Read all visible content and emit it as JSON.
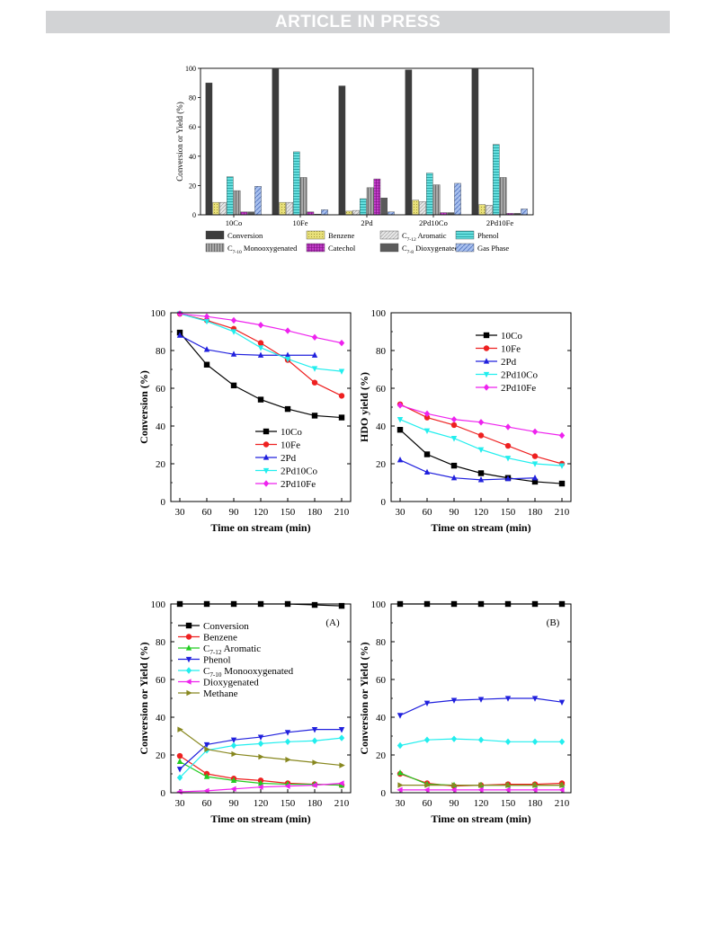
{
  "header": {
    "banner": "ARTICLE IN PRESS"
  },
  "colors": {
    "conversion": "#3c3c3c",
    "benzene": "#e8e07a",
    "aromatic": "#e6e6e6",
    "phenol": "#66dede",
    "monooxy": "#a8a8a8",
    "catechol": "#c23ec8",
    "dioxygenated": "#5a5a5a",
    "gasphase": "#a8c0ee",
    "s10Co": "#000000",
    "s10Fe": "#ee2020",
    "s2Pd": "#2020dd",
    "s2Pd10Co": "#22eeee",
    "s2Pd10Fe": "#ee22ee",
    "benzeneLine": "#ee2020",
    "aromaticLine": "#22cc22",
    "phenolLine": "#2020dd",
    "monooxyLine": "#22eeee",
    "dioxyLine": "#ee22ee",
    "methaneLine": "#888820"
  },
  "chart_data": [
    {
      "type": "bar",
      "ylabel": "Conversion or Yield (%)",
      "ylim": [
        0,
        100
      ],
      "yticks": [
        "0",
        "20",
        "40",
        "60",
        "80",
        "100"
      ],
      "categories": [
        "10Co",
        "10Fe",
        "2Pd",
        "2Pd10Co",
        "2Pd10Fe"
      ],
      "legend_position": "bottom",
      "series": [
        {
          "name": "Conversion",
          "values": [
            90,
            99.5,
            88,
            99,
            99.5
          ]
        },
        {
          "name": "Benzene",
          "values": [
            8.5,
            8.5,
            2.5,
            10,
            7
          ]
        },
        {
          "name": "C7-12 Aromatic",
          "label_main": "C",
          "label_sub": "7-12",
          "label_rest": " Aromatic",
          "values": [
            8.5,
            8.5,
            3,
            9,
            6.5
          ]
        },
        {
          "name": "Phenol",
          "values": [
            26,
            43,
            11,
            28.5,
            48
          ]
        },
        {
          "name": "C7-10 Monooxygenated",
          "label_main": "C",
          "label_sub": "7-10",
          "label_rest": " Monooxygenated",
          "values": [
            16.5,
            25.5,
            18.5,
            20.5,
            25.5
          ]
        },
        {
          "name": "Catechol",
          "values": [
            2,
            2,
            24.5,
            1.5,
            1
          ]
        },
        {
          "name": "C7-8 Dioxygenated",
          "label_main": "C",
          "label_sub": "7-8",
          "label_rest": " Dioxygenated",
          "values": [
            2,
            0.5,
            11.5,
            1.5,
            1
          ]
        },
        {
          "name": "Gas Phase",
          "values": [
            19.5,
            3.5,
            2,
            21.5,
            4
          ]
        }
      ]
    },
    {
      "type": "line",
      "xlabel": "Time on stream (min)",
      "ylabel": "Conversion (%)",
      "x": [
        30,
        60,
        90,
        120,
        150,
        180,
        210
      ],
      "xlim": [
        20,
        220
      ],
      "ylim": [
        0,
        100
      ],
      "xticks": [
        "30",
        "60",
        "90",
        "120",
        "150",
        "180",
        "210"
      ],
      "yticks": [
        "0",
        "20",
        "40",
        "60",
        "80",
        "100"
      ],
      "legend_position": "bottom-center",
      "series": [
        {
          "name": "10Co",
          "values": [
            89.5,
            72.5,
            61.5,
            54,
            49,
            45.5,
            44.5
          ]
        },
        {
          "name": "10Fe",
          "values": [
            99.5,
            96,
            91.5,
            84,
            75,
            63,
            56
          ]
        },
        {
          "name": "2Pd",
          "values": [
            88,
            80.5,
            78,
            77.5,
            77.5,
            77.5,
            null
          ]
        },
        {
          "name": "2Pd10Co",
          "values": [
            99.5,
            95.5,
            90,
            81.5,
            75.5,
            70.5,
            69
          ]
        },
        {
          "name": "2Pd10Fe",
          "values": [
            99.5,
            98,
            96,
            93.5,
            90.5,
            87,
            84
          ]
        }
      ]
    },
    {
      "type": "line",
      "xlabel": "Time on stream (min)",
      "ylabel": "HDO yield (%)",
      "x": [
        30,
        60,
        90,
        120,
        150,
        180,
        210
      ],
      "xlim": [
        20,
        220
      ],
      "ylim": [
        0,
        100
      ],
      "xticks": [
        "30",
        "60",
        "90",
        "120",
        "150",
        "180",
        "210"
      ],
      "yticks": [
        "0",
        "20",
        "40",
        "60",
        "80",
        "100"
      ],
      "legend_position": "top-center",
      "series": [
        {
          "name": "10Co",
          "values": [
            38,
            25,
            19,
            15,
            12.5,
            10.5,
            9.5
          ]
        },
        {
          "name": "10Fe",
          "values": [
            51.5,
            44.5,
            40.5,
            35,
            29.5,
            24,
            20
          ]
        },
        {
          "name": "2Pd",
          "values": [
            22,
            15.5,
            12.5,
            11.5,
            12,
            12.5,
            null
          ]
        },
        {
          "name": "2Pd10Co",
          "values": [
            43.5,
            37.5,
            33.5,
            27.5,
            23,
            20,
            19
          ]
        },
        {
          "name": "2Pd10Fe",
          "values": [
            51,
            46.5,
            43.5,
            42,
            39.5,
            37,
            35
          ]
        }
      ]
    },
    {
      "type": "line",
      "xlabel": "Time on stream (min)",
      "ylabel": "Conversion or Yield (%)",
      "annotation": "(A)",
      "x": [
        30,
        60,
        90,
        120,
        150,
        180,
        210
      ],
      "xlim": [
        20,
        220
      ],
      "ylim": [
        0,
        100
      ],
      "xticks": [
        "30",
        "60",
        "90",
        "120",
        "150",
        "180",
        "210"
      ],
      "yticks": [
        "0",
        "20",
        "40",
        "60",
        "80",
        "100"
      ],
      "legend_position": "top-left",
      "series": [
        {
          "name": "Conversion",
          "values": [
            100,
            100,
            100,
            100,
            100,
            99.5,
            99
          ]
        },
        {
          "name": "Benzene",
          "values": [
            19.5,
            10,
            7.5,
            6.5,
            5,
            4.5,
            4
          ]
        },
        {
          "name": "C7-12 Aromatic",
          "label_main": "C",
          "label_sub": "7-12",
          "label_rest": " Aromatic",
          "values": [
            16.5,
            8.5,
            6.5,
            5,
            4.5,
            4.5,
            4
          ]
        },
        {
          "name": "Phenol",
          "values": [
            12.5,
            25.5,
            28,
            29.5,
            32,
            33.5,
            33.5
          ]
        },
        {
          "name": "C7-10 Monooxygenated",
          "label_main": "C",
          "label_sub": "7-10",
          "label_rest": " Monooxygenated",
          "values": [
            8,
            22.5,
            25,
            26,
            27,
            27.5,
            29
          ]
        },
        {
          "name": "Dioxygenated",
          "values": [
            0.5,
            1,
            2,
            3,
            3.5,
            4,
            5
          ]
        },
        {
          "name": "Methane",
          "values": [
            33.5,
            23,
            20.5,
            19,
            17.5,
            16,
            14.5
          ]
        }
      ]
    },
    {
      "type": "line",
      "xlabel": "Time on stream (min)",
      "ylabel": "Conversion or Yield (%)",
      "annotation": "(B)",
      "x": [
        30,
        60,
        90,
        120,
        150,
        180,
        210
      ],
      "xlim": [
        20,
        220
      ],
      "ylim": [
        0,
        100
      ],
      "xticks": [
        "30",
        "60",
        "90",
        "120",
        "150",
        "180",
        "210"
      ],
      "yticks": [
        "0",
        "20",
        "40",
        "60",
        "80",
        "100"
      ],
      "series": [
        {
          "values": [
            100,
            100,
            100,
            100,
            100,
            100,
            100
          ]
        },
        {
          "values": [
            10,
            5,
            3.5,
            4,
            4.5,
            4.5,
            5
          ]
        },
        {
          "values": [
            10.5,
            4.5,
            4,
            4,
            4,
            4,
            4
          ]
        },
        {
          "values": [
            41,
            47.5,
            49,
            49.5,
            50,
            50,
            48
          ]
        },
        {
          "values": [
            25,
            28,
            28.5,
            28,
            27,
            27,
            27
          ]
        },
        {
          "values": [
            1.5,
            1.5,
            1.5,
            1.5,
            1.5,
            1.5,
            1.5
          ]
        },
        {
          "values": [
            4,
            4,
            4,
            4,
            4,
            4,
            4
          ]
        }
      ]
    }
  ]
}
